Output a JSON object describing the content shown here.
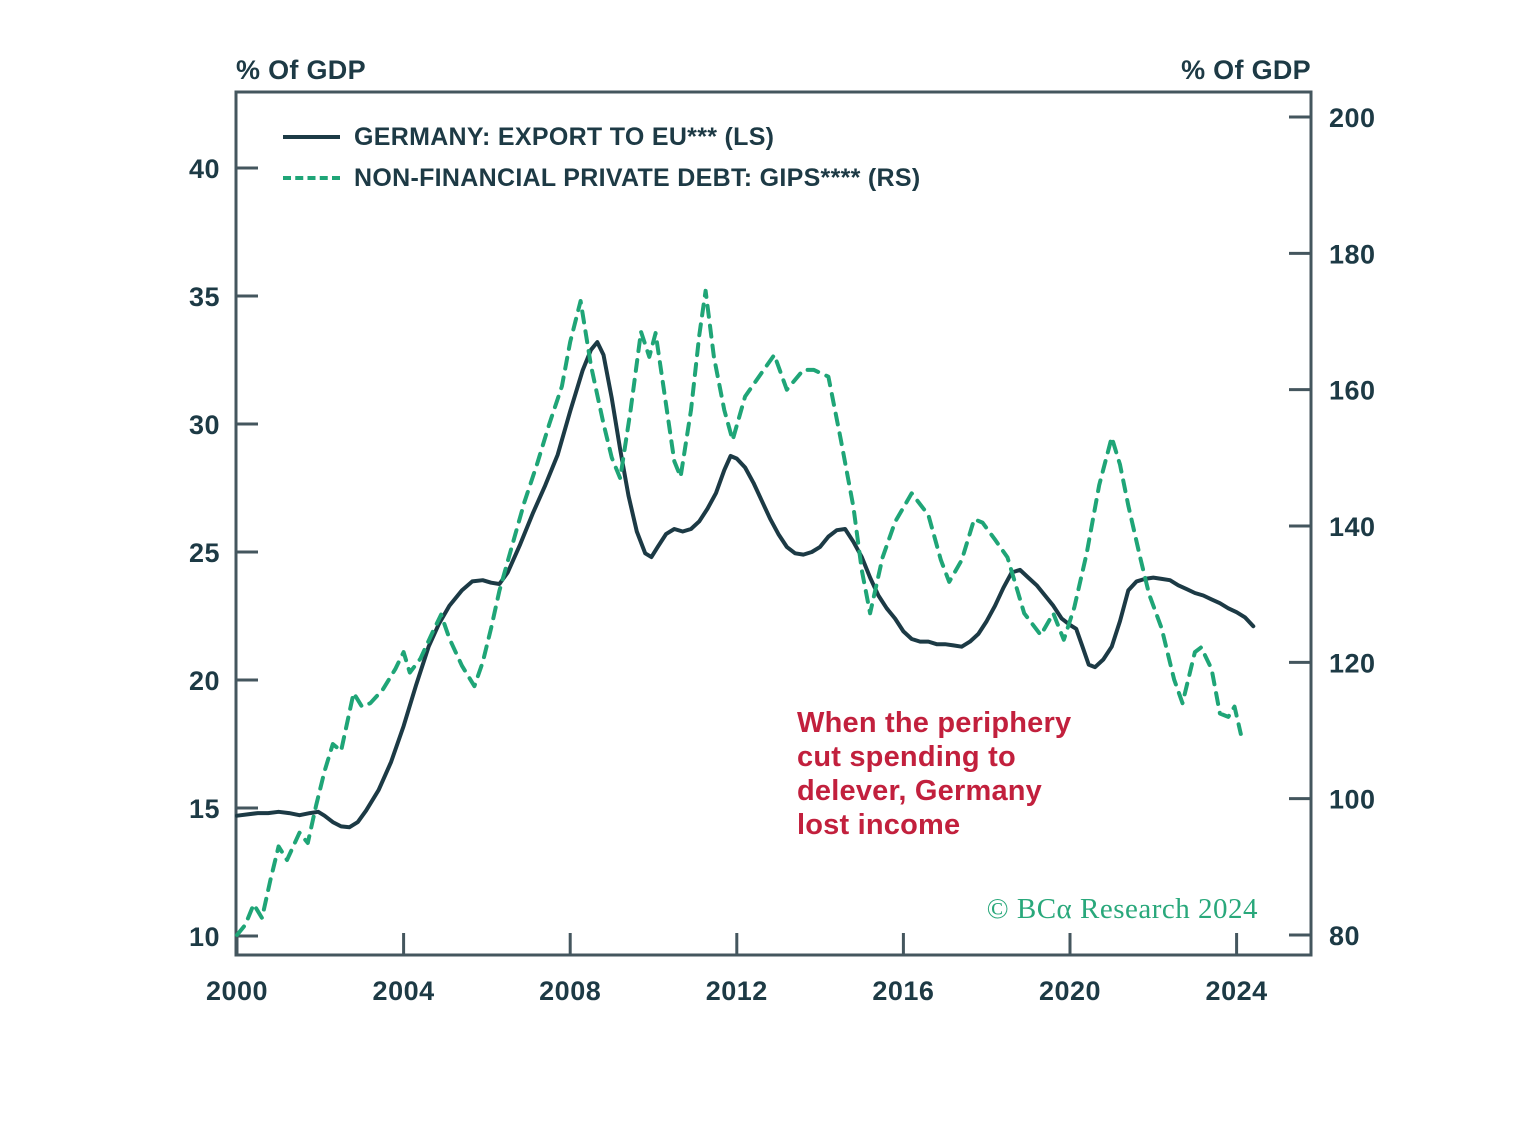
{
  "axis_titles": {
    "left": "% Of GDP",
    "right": "% Of GDP"
  },
  "legend": [
    {
      "label": "GERMANY: EXPORT TO EU*** (LS)",
      "style": "solid",
      "color": "#1c3a45"
    },
    {
      "label": "NON-FINANCIAL PRIVATE DEBT: GIPS**** (RS)",
      "style": "dashed",
      "color": "#1fa577"
    }
  ],
  "annotation": {
    "color": "#c2203d",
    "lines": [
      "When the periphery",
      "cut spending to",
      "delever, Germany",
      "lost income"
    ]
  },
  "credit": "© BCα Research 2024",
  "colors": {
    "export_line": "#1c3a45",
    "debt_line": "#1fa577",
    "axis": "#44565e",
    "tick_text": "#1d3a45",
    "annotation_red": "#c2203d",
    "credit_green": "#29a87b"
  },
  "chart_data": {
    "type": "line",
    "title": "",
    "xlabel": "",
    "x_ticks": [
      2000,
      2004,
      2008,
      2012,
      2016,
      2020,
      2024
    ],
    "x_range": [
      2000,
      2025.8
    ],
    "left_axis": {
      "label": "% Of GDP",
      "ticks": [
        10,
        15,
        20,
        25,
        30,
        35,
        40
      ],
      "range": [
        10,
        40
      ]
    },
    "right_axis": {
      "label": "% Of GDP",
      "ticks": [
        80,
        100,
        120,
        140,
        160,
        180,
        200
      ],
      "range": [
        80,
        200
      ]
    },
    "grid": false,
    "legend_position": "top-left-inside",
    "series": [
      {
        "name": "GERMANY: EXPORT TO EU*** (LS)",
        "axis": "left",
        "style": "solid",
        "color": "#1c3a45",
        "points": [
          [
            2000.0,
            14.7
          ],
          [
            2000.25,
            14.75
          ],
          [
            2000.5,
            14.8
          ],
          [
            2000.75,
            14.8
          ],
          [
            2001.0,
            14.85
          ],
          [
            2001.25,
            14.8
          ],
          [
            2001.5,
            14.72
          ],
          [
            2001.75,
            14.8
          ],
          [
            2001.95,
            14.85
          ],
          [
            2002.1,
            14.7
          ],
          [
            2002.3,
            14.45
          ],
          [
            2002.5,
            14.28
          ],
          [
            2002.7,
            14.25
          ],
          [
            2002.9,
            14.45
          ],
          [
            2003.1,
            14.9
          ],
          [
            2003.4,
            15.7
          ],
          [
            2003.7,
            16.8
          ],
          [
            2004.0,
            18.2
          ],
          [
            2004.3,
            19.8
          ],
          [
            2004.6,
            21.3
          ],
          [
            2004.85,
            22.2
          ],
          [
            2005.1,
            22.9
          ],
          [
            2005.4,
            23.5
          ],
          [
            2005.65,
            23.85
          ],
          [
            2005.9,
            23.9
          ],
          [
            2006.1,
            23.8
          ],
          [
            2006.3,
            23.75
          ],
          [
            2006.5,
            24.2
          ],
          [
            2006.8,
            25.3
          ],
          [
            2007.1,
            26.5
          ],
          [
            2007.4,
            27.6
          ],
          [
            2007.7,
            28.8
          ],
          [
            2008.0,
            30.5
          ],
          [
            2008.3,
            32.1
          ],
          [
            2008.5,
            32.9
          ],
          [
            2008.65,
            33.2
          ],
          [
            2008.8,
            32.7
          ],
          [
            2009.0,
            31.0
          ],
          [
            2009.2,
            29.0
          ],
          [
            2009.4,
            27.2
          ],
          [
            2009.6,
            25.8
          ],
          [
            2009.8,
            24.95
          ],
          [
            2009.95,
            24.8
          ],
          [
            2010.1,
            25.2
          ],
          [
            2010.3,
            25.7
          ],
          [
            2010.5,
            25.9
          ],
          [
            2010.7,
            25.8
          ],
          [
            2010.9,
            25.9
          ],
          [
            2011.1,
            26.2
          ],
          [
            2011.3,
            26.7
          ],
          [
            2011.5,
            27.3
          ],
          [
            2011.7,
            28.2
          ],
          [
            2011.85,
            28.75
          ],
          [
            2012.0,
            28.65
          ],
          [
            2012.2,
            28.3
          ],
          [
            2012.4,
            27.7
          ],
          [
            2012.6,
            27.0
          ],
          [
            2012.8,
            26.3
          ],
          [
            2013.0,
            25.7
          ],
          [
            2013.2,
            25.2
          ],
          [
            2013.4,
            24.95
          ],
          [
            2013.6,
            24.9
          ],
          [
            2013.8,
            25.0
          ],
          [
            2014.0,
            25.2
          ],
          [
            2014.2,
            25.6
          ],
          [
            2014.4,
            25.85
          ],
          [
            2014.6,
            25.9
          ],
          [
            2014.8,
            25.4
          ],
          [
            2015.0,
            24.8
          ],
          [
            2015.2,
            24.0
          ],
          [
            2015.4,
            23.3
          ],
          [
            2015.6,
            22.8
          ],
          [
            2015.8,
            22.4
          ],
          [
            2016.0,
            21.9
          ],
          [
            2016.2,
            21.6
          ],
          [
            2016.4,
            21.5
          ],
          [
            2016.6,
            21.5
          ],
          [
            2016.8,
            21.4
          ],
          [
            2017.0,
            21.4
          ],
          [
            2017.2,
            21.35
          ],
          [
            2017.4,
            21.3
          ],
          [
            2017.6,
            21.5
          ],
          [
            2017.8,
            21.8
          ],
          [
            2018.0,
            22.3
          ],
          [
            2018.2,
            22.9
          ],
          [
            2018.4,
            23.6
          ],
          [
            2018.6,
            24.2
          ],
          [
            2018.8,
            24.3
          ],
          [
            2019.0,
            24.0
          ],
          [
            2019.2,
            23.7
          ],
          [
            2019.4,
            23.3
          ],
          [
            2019.6,
            22.9
          ],
          [
            2019.8,
            22.4
          ],
          [
            2020.0,
            22.15
          ],
          [
            2020.15,
            22.0
          ],
          [
            2020.3,
            21.3
          ],
          [
            2020.45,
            20.6
          ],
          [
            2020.6,
            20.5
          ],
          [
            2020.8,
            20.8
          ],
          [
            2021.0,
            21.3
          ],
          [
            2021.2,
            22.3
          ],
          [
            2021.4,
            23.5
          ],
          [
            2021.6,
            23.85
          ],
          [
            2021.8,
            23.95
          ],
          [
            2022.0,
            24.0
          ],
          [
            2022.2,
            23.95
          ],
          [
            2022.4,
            23.9
          ],
          [
            2022.6,
            23.7
          ],
          [
            2022.8,
            23.55
          ],
          [
            2023.0,
            23.4
          ],
          [
            2023.2,
            23.3
          ],
          [
            2023.4,
            23.15
          ],
          [
            2023.6,
            23.0
          ],
          [
            2023.8,
            22.8
          ],
          [
            2024.0,
            22.65
          ],
          [
            2024.2,
            22.45
          ],
          [
            2024.4,
            22.1
          ]
        ]
      },
      {
        "name": "NON-FINANCIAL PRIVATE DEBT: GIPS**** (RS)",
        "axis": "right",
        "style": "dashed",
        "color": "#1fa577",
        "points": [
          [
            2000.0,
            80.0
          ],
          [
            2000.2,
            81.5
          ],
          [
            2000.4,
            84.5
          ],
          [
            2000.6,
            82.5
          ],
          [
            2000.8,
            88.0
          ],
          [
            2001.0,
            93.0
          ],
          [
            2001.2,
            91.0
          ],
          [
            2001.5,
            95.0
          ],
          [
            2001.7,
            93.5
          ],
          [
            2001.9,
            99.0
          ],
          [
            2002.1,
            104.0
          ],
          [
            2002.3,
            108.0
          ],
          [
            2002.5,
            107.0
          ],
          [
            2002.8,
            115.5
          ],
          [
            2003.0,
            113.5
          ],
          [
            2003.2,
            114.0
          ],
          [
            2003.5,
            116.0
          ],
          [
            2003.8,
            119.0
          ],
          [
            2004.0,
            121.5
          ],
          [
            2004.15,
            118.5
          ],
          [
            2004.4,
            120.5
          ],
          [
            2004.7,
            124.5
          ],
          [
            2004.9,
            127.0
          ],
          [
            2005.1,
            123.5
          ],
          [
            2005.4,
            119.5
          ],
          [
            2005.7,
            116.5
          ],
          [
            2005.9,
            120.0
          ],
          [
            2006.1,
            125.0
          ],
          [
            2006.3,
            130.5
          ],
          [
            2006.6,
            137.0
          ],
          [
            2006.9,
            143.5
          ],
          [
            2007.2,
            149.0
          ],
          [
            2007.5,
            155.0
          ],
          [
            2007.8,
            160.5
          ],
          [
            2008.0,
            167.0
          ],
          [
            2008.25,
            173.0
          ],
          [
            2008.5,
            163.5
          ],
          [
            2008.8,
            155.0
          ],
          [
            2009.0,
            150.0
          ],
          [
            2009.2,
            147.0
          ],
          [
            2009.45,
            157.0
          ],
          [
            2009.7,
            168.5
          ],
          [
            2009.9,
            164.8
          ],
          [
            2010.05,
            168.3
          ],
          [
            2010.25,
            160.0
          ],
          [
            2010.5,
            149.5
          ],
          [
            2010.65,
            147.2
          ],
          [
            2010.9,
            157.0
          ],
          [
            2011.1,
            168.0
          ],
          [
            2011.25,
            174.5
          ],
          [
            2011.45,
            164.8
          ],
          [
            2011.7,
            157.0
          ],
          [
            2011.9,
            152.6
          ],
          [
            2012.2,
            159.0
          ],
          [
            2012.6,
            162.5
          ],
          [
            2012.9,
            165.1
          ],
          [
            2013.2,
            160.0
          ],
          [
            2013.6,
            162.9
          ],
          [
            2013.85,
            162.9
          ],
          [
            2014.2,
            161.9
          ],
          [
            2014.5,
            152.6
          ],
          [
            2014.8,
            142.8
          ],
          [
            2015.0,
            133.5
          ],
          [
            2015.2,
            127.2
          ],
          [
            2015.5,
            135.4
          ],
          [
            2015.8,
            140.6
          ],
          [
            2016.2,
            144.8
          ],
          [
            2016.6,
            141.6
          ],
          [
            2016.9,
            135.0
          ],
          [
            2017.1,
            131.8
          ],
          [
            2017.4,
            135.0
          ],
          [
            2017.7,
            141.0
          ],
          [
            2017.9,
            140.5
          ],
          [
            2018.2,
            138.0
          ],
          [
            2018.5,
            135.4
          ],
          [
            2018.9,
            127.2
          ],
          [
            2019.3,
            124.0
          ],
          [
            2019.6,
            127.2
          ],
          [
            2019.85,
            123.3
          ],
          [
            2020.1,
            128.0
          ],
          [
            2020.4,
            136.0
          ],
          [
            2020.7,
            146.0
          ],
          [
            2021.0,
            153.0
          ],
          [
            2021.2,
            149.0
          ],
          [
            2021.4,
            143.0
          ],
          [
            2021.7,
            135.0
          ],
          [
            2021.9,
            130.0
          ],
          [
            2022.2,
            125.0
          ],
          [
            2022.5,
            117.5
          ],
          [
            2022.7,
            114.0
          ],
          [
            2023.0,
            121.5
          ],
          [
            2023.15,
            122.2
          ],
          [
            2023.4,
            119.0
          ],
          [
            2023.6,
            112.5
          ],
          [
            2023.8,
            112.0
          ],
          [
            2023.95,
            113.5
          ],
          [
            2024.1,
            109.5
          ]
        ]
      }
    ]
  }
}
